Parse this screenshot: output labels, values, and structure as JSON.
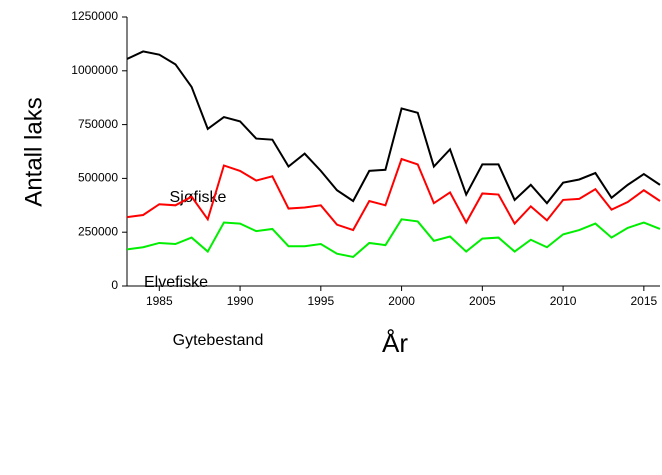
{
  "chart_data": {
    "type": "line",
    "x_label": "År",
    "y_label": "Antall laks",
    "x": [
      1983,
      1984,
      1985,
      1986,
      1987,
      1988,
      1989,
      1990,
      1991,
      1992,
      1993,
      1994,
      1995,
      1996,
      1997,
      1998,
      1999,
      2000,
      2001,
      2002,
      2003,
      2004,
      2005,
      2006,
      2007,
      2008,
      2009,
      2010,
      2011,
      2012,
      2013,
      2014,
      2015,
      2016
    ],
    "series": [
      {
        "name": "Sjøfiske",
        "color": "#000000",
        "values": [
          1055000,
          1090000,
          1075000,
          1030000,
          925000,
          730000,
          785000,
          765000,
          685000,
          680000,
          555000,
          615000,
          535000,
          445000,
          395000,
          535000,
          540000,
          825000,
          805000,
          555000,
          635000,
          425000,
          565000,
          565000,
          400000,
          470000,
          385000,
          480000,
          495000,
          525000,
          410000,
          470000,
          520000,
          470000
        ]
      },
      {
        "name": "Elvefiske",
        "color": "#ff0000",
        "values": [
          320000,
          330000,
          380000,
          375000,
          415000,
          310000,
          560000,
          535000,
          490000,
          510000,
          360000,
          365000,
          375000,
          285000,
          260000,
          395000,
          375000,
          590000,
          565000,
          385000,
          435000,
          295000,
          430000,
          425000,
          290000,
          370000,
          305000,
          400000,
          405000,
          450000,
          355000,
          390000,
          445000,
          395000
        ]
      },
      {
        "name": "Gytebestand",
        "color": "#00ee00",
        "values": [
          170000,
          180000,
          200000,
          195000,
          225000,
          160000,
          295000,
          290000,
          255000,
          265000,
          185000,
          185000,
          195000,
          150000,
          135000,
          200000,
          190000,
          310000,
          300000,
          210000,
          230000,
          160000,
          220000,
          225000,
          160000,
          215000,
          180000,
          240000,
          260000,
          290000,
          225000,
          270000,
          295000,
          265000
        ]
      }
    ],
    "xlim": [
      1983,
      2016
    ],
    "xticks": [
      1985,
      1990,
      1995,
      2000,
      2005,
      2010,
      2015
    ],
    "ylim": [
      0,
      1250000
    ],
    "yticks": [
      0,
      250000,
      500000,
      750000,
      1000000,
      1250000
    ]
  }
}
